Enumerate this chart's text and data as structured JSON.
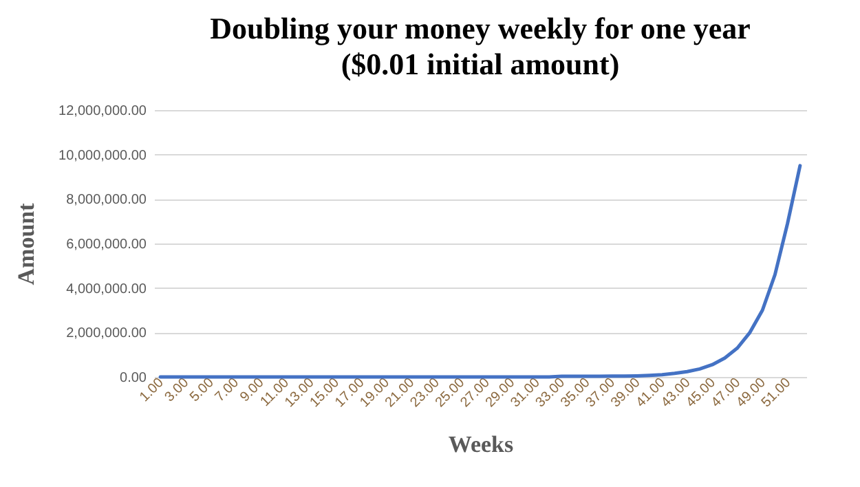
{
  "chart_data": {
    "type": "line",
    "title": "Doubling your money weekly for one year\n($0.01 initial amount)",
    "xlabel": "Weeks",
    "ylabel": "Amount",
    "categories": [
      "1.00",
      null,
      "3.00",
      null,
      "5.00",
      null,
      "7.00",
      null,
      "9.00",
      null,
      "11.00",
      null,
      "13.00",
      null,
      "15.00",
      null,
      "17.00",
      null,
      "19.00",
      null,
      "21.00",
      null,
      "23.00",
      null,
      "25.00",
      null,
      "27.00",
      null,
      "29.00",
      null,
      "31.00",
      null,
      "33.00",
      null,
      "35.00",
      null,
      "37.00",
      null,
      "39.00",
      null,
      "41.00",
      null,
      "43.00",
      null,
      "45.00",
      null,
      "47.00",
      null,
      "49.00",
      null,
      "51.00",
      null
    ],
    "series": [
      {
        "color": "#4472c4",
        "values": [
          0,
          0,
          0,
          0,
          0,
          0,
          0,
          0,
          0,
          0,
          0,
          0,
          0,
          0,
          0,
          0,
          0,
          0,
          0,
          0,
          0,
          0,
          0,
          0,
          0,
          0,
          0,
          0,
          0,
          0,
          0,
          0,
          30000,
          30000,
          30000,
          30000,
          40000,
          40000,
          50000,
          70000,
          100000,
          160000,
          240000,
          360000,
          550000,
          850000,
          1300000,
          2000000,
          3000000,
          4600000,
          6900000,
          9500000
        ]
      }
    ],
    "ylim": [
      0,
      12000000
    ],
    "yticks": [
      {
        "value": 0,
        "label": "0.00"
      },
      {
        "value": 2000000,
        "label": "2,000,000.00"
      },
      {
        "value": 4000000,
        "label": "4,000,000.00"
      },
      {
        "value": 6000000,
        "label": "6,000,000.00"
      },
      {
        "value": 8000000,
        "label": "8,000,000.00"
      },
      {
        "value": 10000000,
        "label": "10,000,000.00"
      },
      {
        "value": 12000000,
        "label": "12,000,000.00"
      }
    ],
    "grid": "y",
    "legend": false,
    "marker": "none",
    "line_style": "solid"
  }
}
